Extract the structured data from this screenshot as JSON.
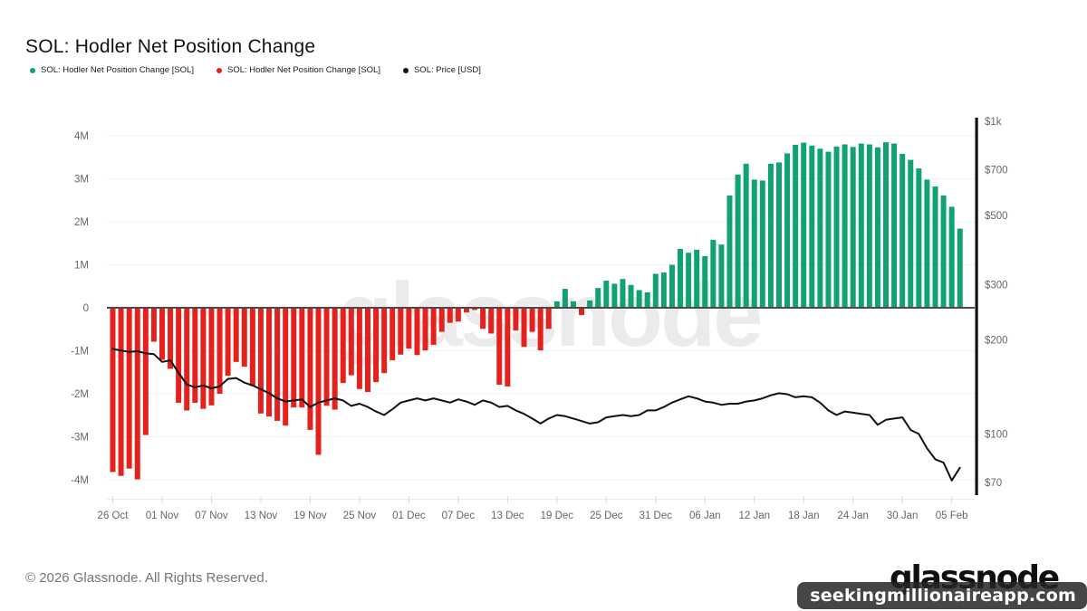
{
  "header": {
    "title": "SOL: Hodler Net Position Change"
  },
  "legend": {
    "items": [
      {
        "label": "SOL: Hodler Net Position Change [SOL]",
        "color": "#10a370",
        "icon": "green-dot"
      },
      {
        "label": "SOL: Hodler Net Position Change [SOL]",
        "color": "#e4211c",
        "icon": "red-dot"
      },
      {
        "label": "SOL: Price [USD]",
        "color": "#111111",
        "icon": "black-dot"
      }
    ]
  },
  "chart_data": {
    "type": "bar",
    "title": "SOL: Hodler Net Position Change",
    "x_start_label": "26 Oct",
    "x_tick_interval_days": 6,
    "x_ticks": [
      {
        "label": "26 Oct",
        "day": 0
      },
      {
        "label": "01 Nov",
        "day": 6
      },
      {
        "label": "07 Nov",
        "day": 12
      },
      {
        "label": "13 Nov",
        "day": 18
      },
      {
        "label": "19 Nov",
        "day": 24
      },
      {
        "label": "25 Nov",
        "day": 30
      },
      {
        "label": "01 Dec",
        "day": 36
      },
      {
        "label": "07 Dec",
        "day": 42
      },
      {
        "label": "13 Dec",
        "day": 48
      },
      {
        "label": "19 Dec",
        "day": 54
      },
      {
        "label": "25 Dec",
        "day": 60
      },
      {
        "label": "31 Dec",
        "day": 66
      },
      {
        "label": "06 Jan",
        "day": 72
      },
      {
        "label": "12 Jan",
        "day": 78
      },
      {
        "label": "18 Jan",
        "day": 84
      },
      {
        "label": "24 Jan",
        "day": 90
      },
      {
        "label": "30 Jan",
        "day": 96
      },
      {
        "label": "05 Feb",
        "day": 102
      }
    ],
    "left_axis": {
      "unit": "SOL (millions)",
      "ticks": [
        {
          "label": "4M",
          "value": 4
        },
        {
          "label": "3M",
          "value": 3
        },
        {
          "label": "2M",
          "value": 2
        },
        {
          "label": "1M",
          "value": 1
        },
        {
          "label": "0",
          "value": 0
        },
        {
          "label": "-1M",
          "value": -1
        },
        {
          "label": "-2M",
          "value": -2
        },
        {
          "label": "-3M",
          "value": -3
        },
        {
          "label": "-4M",
          "value": -4
        }
      ]
    },
    "right_axis": {
      "unit": "USD",
      "scale": "log",
      "ticks": [
        {
          "label": "$1k",
          "value": 1000
        },
        {
          "label": "$700",
          "value": 700
        },
        {
          "label": "$500",
          "value": 500
        },
        {
          "label": "$300",
          "value": 300
        },
        {
          "label": "$200",
          "value": 200
        },
        {
          "label": "$100",
          "value": 100
        },
        {
          "label": "$70",
          "value": 70
        }
      ]
    },
    "series": [
      {
        "name": "SOL: Hodler Net Position Change [SOL]",
        "type": "bar",
        "unit_millions_SOL": true,
        "values": [
          -3.82,
          -3.91,
          -3.74,
          -3.99,
          -2.96,
          -0.79,
          -1.21,
          -1.42,
          -2.21,
          -2.39,
          -2.21,
          -2.35,
          -2.27,
          -2.0,
          -1.58,
          -1.26,
          -1.37,
          -1.82,
          -2.46,
          -2.53,
          -2.63,
          -2.74,
          -2.32,
          -2.32,
          -2.84,
          -3.42,
          -2.28,
          -2.37,
          -1.75,
          -1.57,
          -1.89,
          -1.96,
          -1.73,
          -1.52,
          -1.22,
          -1.09,
          -0.95,
          -1.1,
          -0.99,
          -0.86,
          -0.56,
          -0.35,
          -0.32,
          -0.11,
          -0.05,
          -0.49,
          -0.6,
          -1.79,
          -1.83,
          -0.53,
          -0.91,
          -0.56,
          -0.99,
          -0.49,
          0.15,
          0.44,
          0.15,
          -0.17,
          0.17,
          0.46,
          0.63,
          0.56,
          0.67,
          0.53,
          0.41,
          0.36,
          0.79,
          0.82,
          1.0,
          1.37,
          1.28,
          1.35,
          1.2,
          1.58,
          1.47,
          2.61,
          3.1,
          3.35,
          2.98,
          2.96,
          3.35,
          3.38,
          3.59,
          3.79,
          3.84,
          3.77,
          3.7,
          3.63,
          3.75,
          3.8,
          3.74,
          3.82,
          3.8,
          3.73,
          3.85,
          3.82,
          3.58,
          3.44,
          3.24,
          2.98,
          2.82,
          2.61,
          2.35,
          1.84
        ]
      },
      {
        "name": "SOL: Price [USD]",
        "type": "line",
        "unit": "USD",
        "values": [
          187,
          185,
          183,
          184,
          181,
          180,
          170,
          172,
          157,
          144,
          141,
          143,
          140,
          142,
          150,
          151,
          146,
          143,
          139,
          135,
          130,
          127,
          128,
          129,
          122,
          126,
          128,
          130,
          128,
          123,
          125,
          122,
          118,
          115,
          120,
          126,
          128,
          130,
          128,
          130,
          128,
          126,
          129,
          127,
          124,
          128,
          126,
          122,
          123,
          119,
          116,
          112,
          108,
          112,
          115,
          114,
          112,
          110,
          108,
          109,
          113,
          114,
          115,
          114,
          115,
          119,
          119,
          122,
          126,
          129,
          132,
          130,
          127,
          126,
          124,
          125,
          125,
          127,
          128,
          130,
          133,
          135,
          134,
          131,
          132,
          131,
          126,
          119,
          115,
          118,
          117,
          116,
          115,
          107,
          111,
          112,
          113,
          103,
          100,
          90,
          83,
          81,
          71,
          78
        ]
      }
    ],
    "colors": {
      "positive": "#10a370",
      "negative": "#e4211c",
      "price_line": "#111111",
      "gridline": "#f1f1f1",
      "zero_line": "#4a4a4a",
      "axis_text": "#666666",
      "right_axis_bar": "#111111"
    },
    "grid": true,
    "legend_position": "top-left"
  },
  "watermark": {
    "chart_text": "glassnode"
  },
  "footer": {
    "copyright": "© 2026 Glassnode. All Rights Reserved.",
    "logo_text": "glassnode",
    "overlay_text": "seekingmillionaireapp.com"
  }
}
